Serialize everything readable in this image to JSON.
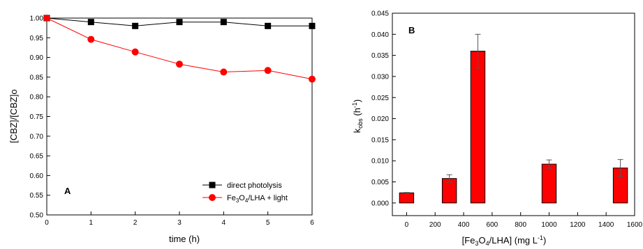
{
  "chart_data": [
    {
      "type": "line",
      "panel_label": "A",
      "xlabel": "time (h)",
      "ylabel": "[CBZ]/[CBZ]o",
      "xlim": [
        0,
        6
      ],
      "ylim": [
        0.5,
        1.0
      ],
      "xticks": [
        0,
        1,
        2,
        3,
        4,
        5,
        6
      ],
      "yticks": [
        "0.50",
        "0.55",
        "0.60",
        "0.65",
        "0.70",
        "0.75",
        "0.80",
        "0.85",
        "0.90",
        "0.95",
        "1.00"
      ],
      "legend_position": "bottom-right",
      "series": [
        {
          "name": "direct photolysis",
          "marker": "square",
          "color": "#000000",
          "x": [
            0,
            1,
            2,
            3,
            4,
            5,
            6
          ],
          "y": [
            1.0,
            0.99,
            0.98,
            0.99,
            0.99,
            0.98,
            0.98
          ]
        },
        {
          "name_parts": [
            "Fe",
            "3",
            "O",
            "4",
            "/LHA + light"
          ],
          "marker": "circle",
          "color": "#ff0000",
          "x": [
            0,
            1,
            2,
            3,
            4,
            5,
            6
          ],
          "y": [
            1.0,
            0.946,
            0.914,
            0.883,
            0.863,
            0.867,
            0.845
          ]
        }
      ]
    },
    {
      "type": "bar",
      "panel_label": "B",
      "xlabel_parts": [
        "[Fe",
        "3",
        "O",
        "4",
        "/LHA] (mg L",
        "-1",
        ")"
      ],
      "ylabel_parts": [
        "k",
        "obs",
        " (h",
        "-1",
        ")"
      ],
      "xlim": [
        -100,
        1600
      ],
      "ylim": [
        -0.003,
        0.045
      ],
      "xticks": [
        0,
        200,
        400,
        600,
        800,
        1000,
        1200,
        1400,
        1600
      ],
      "yticks": [
        "0.000",
        "0.005",
        "0.010",
        "0.015",
        "0.020",
        "0.025",
        "0.030",
        "0.035",
        "0.040",
        "0.045"
      ],
      "bar_color": "#ff0000",
      "bar_width_data": 100,
      "bars": [
        {
          "x": 0,
          "value": 0.0024,
          "error": 0.0001
        },
        {
          "x": 300,
          "value": 0.0058,
          "error": 0.0009
        },
        {
          "x": 500,
          "value": 0.036,
          "error": 0.004
        },
        {
          "x": 1000,
          "value": 0.0092,
          "error": 0.001
        },
        {
          "x": 1500,
          "value": 0.0083,
          "error": 0.002
        }
      ]
    }
  ]
}
